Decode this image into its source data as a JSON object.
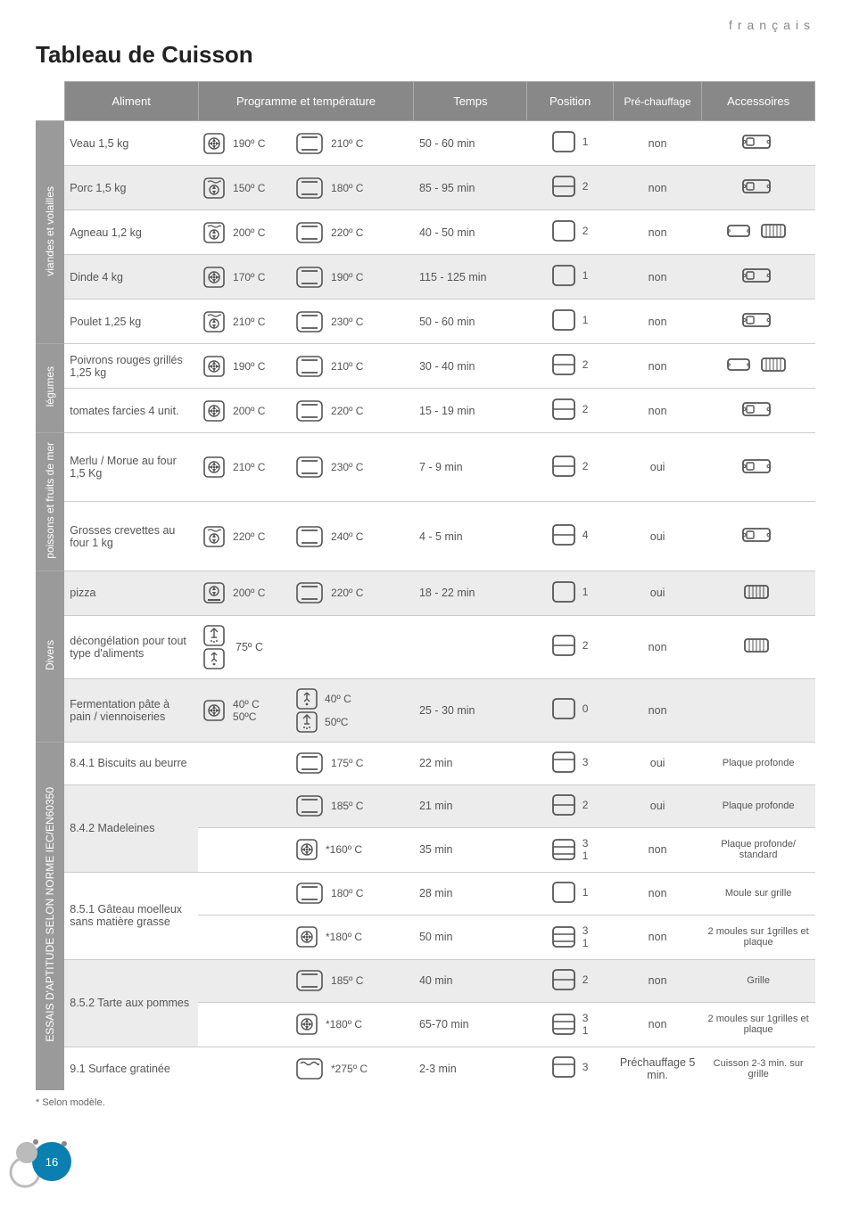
{
  "lang_label": "français",
  "title": "Tableau de Cuisson",
  "columns": {
    "food": "Aliment",
    "program": "Programme et température",
    "time": "Temps",
    "position": "Position",
    "preheat": "Pré-chauffage",
    "accessories": "Accessoires"
  },
  "categories": [
    {
      "name": "viandes et volailles",
      "rows": [
        {
          "food": "Veau 1,5 kg",
          "shade": false,
          "prog": [
            {
              "icon": "fan-circle",
              "boxed": true,
              "t": "190º C"
            },
            {
              "icon": "oven",
              "boxed": true,
              "t": "210º C"
            }
          ],
          "time": "50 - 60 min",
          "pos": {
            "icon": "box-open",
            "n": "1"
          },
          "pre": "non",
          "acc": [
            "tray-deep"
          ]
        },
        {
          "food": "Porc 1,5 kg",
          "shade": true,
          "prog": [
            {
              "icon": "fan-wavy",
              "boxed": true,
              "t": "150º C"
            },
            {
              "icon": "oven",
              "boxed": true,
              "t": "180º C"
            }
          ],
          "time": "85 - 95 min",
          "pos": {
            "icon": "rack-mid",
            "n": "2"
          },
          "pre": "non",
          "acc": [
            "tray-deep"
          ]
        },
        {
          "food": "Agneau 1,2 kg",
          "shade": false,
          "prog": [
            {
              "icon": "fan-wavy",
              "boxed": true,
              "t": "200º C"
            },
            {
              "icon": "oven",
              "boxed": true,
              "t": "220º C"
            }
          ],
          "time": "40 - 50 min",
          "pos": {
            "icon": "box-open",
            "n": "2"
          },
          "pre": "non",
          "acc": [
            "tray",
            "grill"
          ]
        },
        {
          "food": "Dinde 4 kg",
          "shade": true,
          "prog": [
            {
              "icon": "fan-circle",
              "boxed": true,
              "t": "170º C"
            },
            {
              "icon": "oven",
              "boxed": true,
              "t": "190º C"
            }
          ],
          "time": "115 - 125 min",
          "pos": {
            "icon": "box-open",
            "n": "1"
          },
          "pre": "non",
          "acc": [
            "tray-deep"
          ]
        },
        {
          "food": "Poulet 1,25 kg",
          "shade": false,
          "prog": [
            {
              "icon": "fan-wavy",
              "boxed": true,
              "t": "210º C"
            },
            {
              "icon": "oven",
              "boxed": true,
              "t": "230º C"
            }
          ],
          "time": "50 - 60 min",
          "pos": {
            "icon": "box-open",
            "n": "1"
          },
          "pre": "non",
          "acc": [
            "tray-deep"
          ]
        }
      ]
    },
    {
      "name": "légumes",
      "rows": [
        {
          "food": "Poivrons rouges grillés 1,25 kg",
          "shade": false,
          "prog": [
            {
              "icon": "fan-circle",
              "boxed": true,
              "t": "190º C"
            },
            {
              "icon": "oven",
              "boxed": true,
              "t": "210º C"
            }
          ],
          "time": "30 - 40 min",
          "pos": {
            "icon": "rack-mid",
            "n": "2"
          },
          "pre": "non",
          "acc": [
            "tray",
            "grill"
          ]
        },
        {
          "food": "tomates farcies 4 unit.",
          "shade": false,
          "prog": [
            {
              "icon": "fan-circle",
              "boxed": true,
              "t": "200º C"
            },
            {
              "icon": "oven",
              "boxed": true,
              "t": "220º C"
            }
          ],
          "time": "15 - 19 min",
          "pos": {
            "icon": "rack-mid",
            "n": "2"
          },
          "pre": "non",
          "acc": [
            "tray-deep"
          ]
        }
      ]
    },
    {
      "name": "poissons et fruits de mer",
      "rows": [
        {
          "food": "Merlu / Morue au four 1,5 Kg",
          "shade": false,
          "prog": [
            {
              "icon": "fan-circle",
              "boxed": true,
              "t": "210º C"
            },
            {
              "icon": "oven",
              "boxed": true,
              "t": "230º C"
            }
          ],
          "time": "7 - 9 min",
          "pos": {
            "icon": "rack-mid",
            "n": "2"
          },
          "pre": "oui",
          "acc": [
            "tray-deep"
          ]
        },
        {
          "food": "Grosses crevettes au four 1 kg",
          "shade": false,
          "prog": [
            {
              "icon": "fan-wavy",
              "boxed": true,
              "t": "220º C"
            },
            {
              "icon": "oven",
              "boxed": true,
              "t": "240º C"
            }
          ],
          "time": "4 - 5 min",
          "pos": {
            "icon": "rack-mid",
            "n": "4"
          },
          "pre": "oui",
          "acc": [
            "tray-deep"
          ]
        }
      ]
    },
    {
      "name": "Divers",
      "rows": [
        {
          "food": "pizza",
          "shade": true,
          "prog": [
            {
              "icon": "fan-bottom",
              "boxed": true,
              "t": "200º C"
            },
            {
              "icon": "oven",
              "boxed": true,
              "t": "220º C"
            }
          ],
          "time": "18 - 22 min",
          "pos": {
            "icon": "box-open",
            "n": "1"
          },
          "pre": "oui",
          "acc": [
            "grill"
          ]
        },
        {
          "food": "décongélation pour tout type d'aliments",
          "shade": false,
          "prog": [
            {
              "icon": "defrost",
              "boxed": true,
              "t": ""
            },
            {
              "icon": "defrost2",
              "boxed": true,
              "t": "75º C"
            }
          ],
          "time": "",
          "pos": {
            "icon": "rack-mid",
            "n": "2"
          },
          "pre": "non",
          "acc": [
            "grill"
          ],
          "prog_stack": true
        },
        {
          "food": "Fermentation pâte à pain / viennoiseries",
          "shade": true,
          "prog": [
            {
              "icon": "fan-circle",
              "boxed": true,
              "t": "40º C 50ºC"
            },
            {
              "icon": "defrost2",
              "boxed": true,
              "t": "40º C"
            },
            {
              "icon": "defrost",
              "boxed": true,
              "t": "50ºC"
            }
          ],
          "time": "25 - 30 min",
          "pos": {
            "icon": "box-open",
            "n": "0"
          },
          "pre": "non",
          "acc": [],
          "ferment": true
        }
      ]
    },
    {
      "name": "ESSAIS D'APTITUDE SELON NORME IEC/EN60350",
      "rows": [
        {
          "food": "8.4.1 Biscuits au beurre",
          "shade": false,
          "prog": [
            {
              "icon": "",
              "t": ""
            },
            {
              "icon": "oven",
              "boxed": true,
              "t": "175º C"
            }
          ],
          "time": "22 min",
          "pos": {
            "icon": "rack-mid3",
            "n": "3"
          },
          "pre": "oui",
          "acc_text": "Plaque profonde"
        },
        {
          "food": "8.4.2 Madeleines",
          "shade": true,
          "rowspan": 2,
          "prog": [
            {
              "icon": "",
              "t": ""
            },
            {
              "icon": "oven",
              "boxed": true,
              "t": "185º C"
            }
          ],
          "time": "21 min",
          "pos": {
            "icon": "rack-mid",
            "n": "2"
          },
          "pre": "oui",
          "acc_text": "Plaque profonde"
        },
        {
          "food": "",
          "shade": false,
          "sub": true,
          "prog": [
            {
              "icon": "",
              "t": ""
            },
            {
              "icon": "fan-circle",
              "boxed": true,
              "t": "*160º C"
            }
          ],
          "time": "35 min",
          "pos": {
            "icon": "rack-two",
            "n": "3 1"
          },
          "pre": "non",
          "acc_text": "Plaque profonde/ standard"
        },
        {
          "food": "8.5.1 Gâteau moelleux sans matière grasse",
          "shade": false,
          "rowspan": 2,
          "prog": [
            {
              "icon": "",
              "t": ""
            },
            {
              "icon": "oven",
              "boxed": true,
              "t": "180º C"
            }
          ],
          "time": "28 min",
          "pos": {
            "icon": "box-open",
            "n": "1"
          },
          "pre": "non",
          "acc_text": "Moule sur grille"
        },
        {
          "food": "",
          "shade": false,
          "sub": true,
          "prog": [
            {
              "icon": "",
              "t": ""
            },
            {
              "icon": "fan-circle",
              "boxed": true,
              "t": "*180º C"
            }
          ],
          "time": "50 min",
          "pos": {
            "icon": "rack-two",
            "n": "3 1"
          },
          "pre": "non",
          "acc_text": "2 moules sur 1grilles et plaque"
        },
        {
          "food": "8.5.2 Tarte aux pommes",
          "shade": true,
          "rowspan": 2,
          "prog": [
            {
              "icon": "",
              "t": ""
            },
            {
              "icon": "oven",
              "boxed": true,
              "t": "185º C"
            }
          ],
          "time": "40 min",
          "pos": {
            "icon": "rack-mid",
            "n": "2"
          },
          "pre": "non",
          "acc_text": "Grille"
        },
        {
          "food": "",
          "shade": false,
          "sub": true,
          "prog": [
            {
              "icon": "",
              "t": ""
            },
            {
              "icon": "fan-circle",
              "boxed": true,
              "t": "*180º C"
            }
          ],
          "time": "65-70 min",
          "pos": {
            "icon": "rack-two",
            "n": "3 1"
          },
          "pre": "non",
          "acc_text": "2 moules sur 1grilles et plaque"
        },
        {
          "food": "9.1 Surface gratinée",
          "shade": false,
          "prog": [
            {
              "icon": "",
              "t": ""
            },
            {
              "icon": "grill-top",
              "boxed": true,
              "t": "*275º C"
            }
          ],
          "time": "2-3 min",
          "pos": {
            "icon": "rack-mid3",
            "n": "3"
          },
          "pre": "Préchauffage 5 min.",
          "acc_text": "Cuisson 2-3 min. sur grille"
        }
      ]
    }
  ],
  "footnote": "* Selon modèle.",
  "page_number": "16",
  "colors": {
    "header_bg": "#888888",
    "cat_bg": "#9a9a9a",
    "shade_bg": "#ececec",
    "text": "#555555",
    "accent": "#0b7fb0"
  }
}
